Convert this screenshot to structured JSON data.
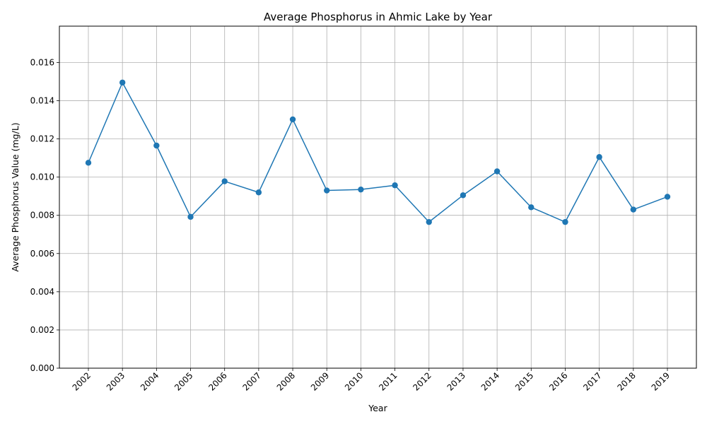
{
  "chart_data": {
    "type": "line",
    "title": "Average Phosphorus in Ahmic Lake by Year",
    "xlabel": "Year",
    "ylabel": "Average Phosphorus Value (mg/L)",
    "x": [
      "2002",
      "2003",
      "2004",
      "2005",
      "2006",
      "2007",
      "2008",
      "2009",
      "2010",
      "2011",
      "2012",
      "2013",
      "2014",
      "2015",
      "2016",
      "2017",
      "2018",
      "2019"
    ],
    "series": [
      {
        "values": [
          0.01075,
          0.01495,
          0.01165,
          0.00792,
          0.00978,
          0.0092,
          0.01302,
          0.0093,
          0.00935,
          0.00957,
          0.00765,
          0.00905,
          0.0103,
          0.00842,
          0.00765,
          0.01105,
          0.0083,
          0.00897
        ],
        "color": "#1f77b4",
        "marker": "circle"
      }
    ],
    "ylim": [
      0,
      0.0179
    ],
    "yticks": [
      "0.000",
      "0.002",
      "0.004",
      "0.006",
      "0.008",
      "0.010",
      "0.012",
      "0.014",
      "0.016"
    ],
    "grid": true,
    "legend": "none"
  }
}
